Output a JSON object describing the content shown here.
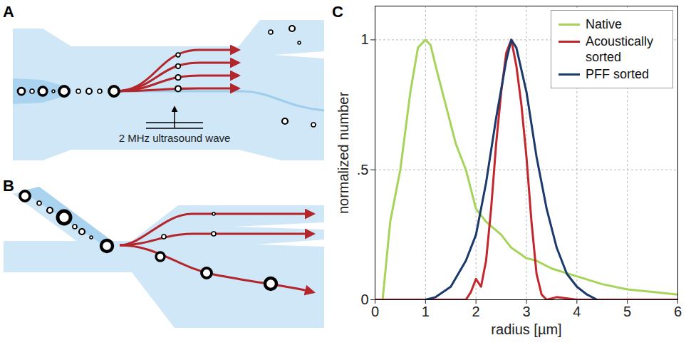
{
  "panels": [
    {
      "label": "A",
      "annotation": "2 MHz ultrasound wave"
    },
    {
      "label": "B"
    },
    {
      "label": "C"
    }
  ],
  "chart_data": {
    "type": "line",
    "xlabel": "radius [µm]",
    "ylabel": "normalized number",
    "xlim": [
      0,
      6
    ],
    "xticks": [
      0,
      1,
      2,
      3,
      4,
      5,
      6
    ],
    "ylim": [
      0,
      1.13
    ],
    "yticks": [
      0,
      {
        "value": 0.5,
        "label": ".5"
      },
      1
    ],
    "grid": true,
    "legend": "top-right",
    "series": [
      {
        "name": "Native",
        "color": "#a6d45a",
        "x": [
          0.15,
          0.3,
          0.5,
          0.7,
          0.85,
          1.0,
          1.1,
          1.2,
          1.4,
          1.6,
          1.8,
          2.0,
          2.2,
          2.5,
          2.7,
          3.0,
          3.2,
          3.5,
          4.0,
          4.5,
          5.0,
          5.5,
          6.0
        ],
        "values": [
          0,
          0.3,
          0.5,
          0.8,
          0.97,
          1.0,
          0.98,
          0.9,
          0.75,
          0.6,
          0.5,
          0.35,
          0.3,
          0.25,
          0.2,
          0.16,
          0.15,
          0.12,
          0.09,
          0.06,
          0.04,
          0.03,
          0.02
        ]
      },
      {
        "name": "Acoustically sorted",
        "color": "#c1272d",
        "x": [
          0,
          1.8,
          1.9,
          2.0,
          2.1,
          2.2,
          2.3,
          2.4,
          2.5,
          2.6,
          2.7,
          2.8,
          2.9,
          3.0,
          3.1,
          3.2,
          3.3,
          3.4,
          3.6,
          4.0,
          6.0
        ],
        "values": [
          0,
          0,
          0.03,
          0.08,
          0.05,
          0.15,
          0.35,
          0.6,
          0.8,
          0.95,
          1.0,
          0.9,
          0.75,
          0.55,
          0.3,
          0.1,
          0.02,
          0,
          0.01,
          0,
          0
        ]
      },
      {
        "name": "PFF sorted",
        "color": "#1b3a6b",
        "x": [
          1.0,
          1.2,
          1.5,
          1.8,
          2.0,
          2.2,
          2.4,
          2.6,
          2.7,
          2.8,
          3.0,
          3.2,
          3.4,
          3.6,
          3.8,
          4.0,
          4.2,
          4.4
        ],
        "values": [
          0,
          0.01,
          0.05,
          0.15,
          0.25,
          0.45,
          0.7,
          0.92,
          1.0,
          0.97,
          0.8,
          0.55,
          0.35,
          0.2,
          0.1,
          0.05,
          0.02,
          0
        ]
      }
    ]
  }
}
